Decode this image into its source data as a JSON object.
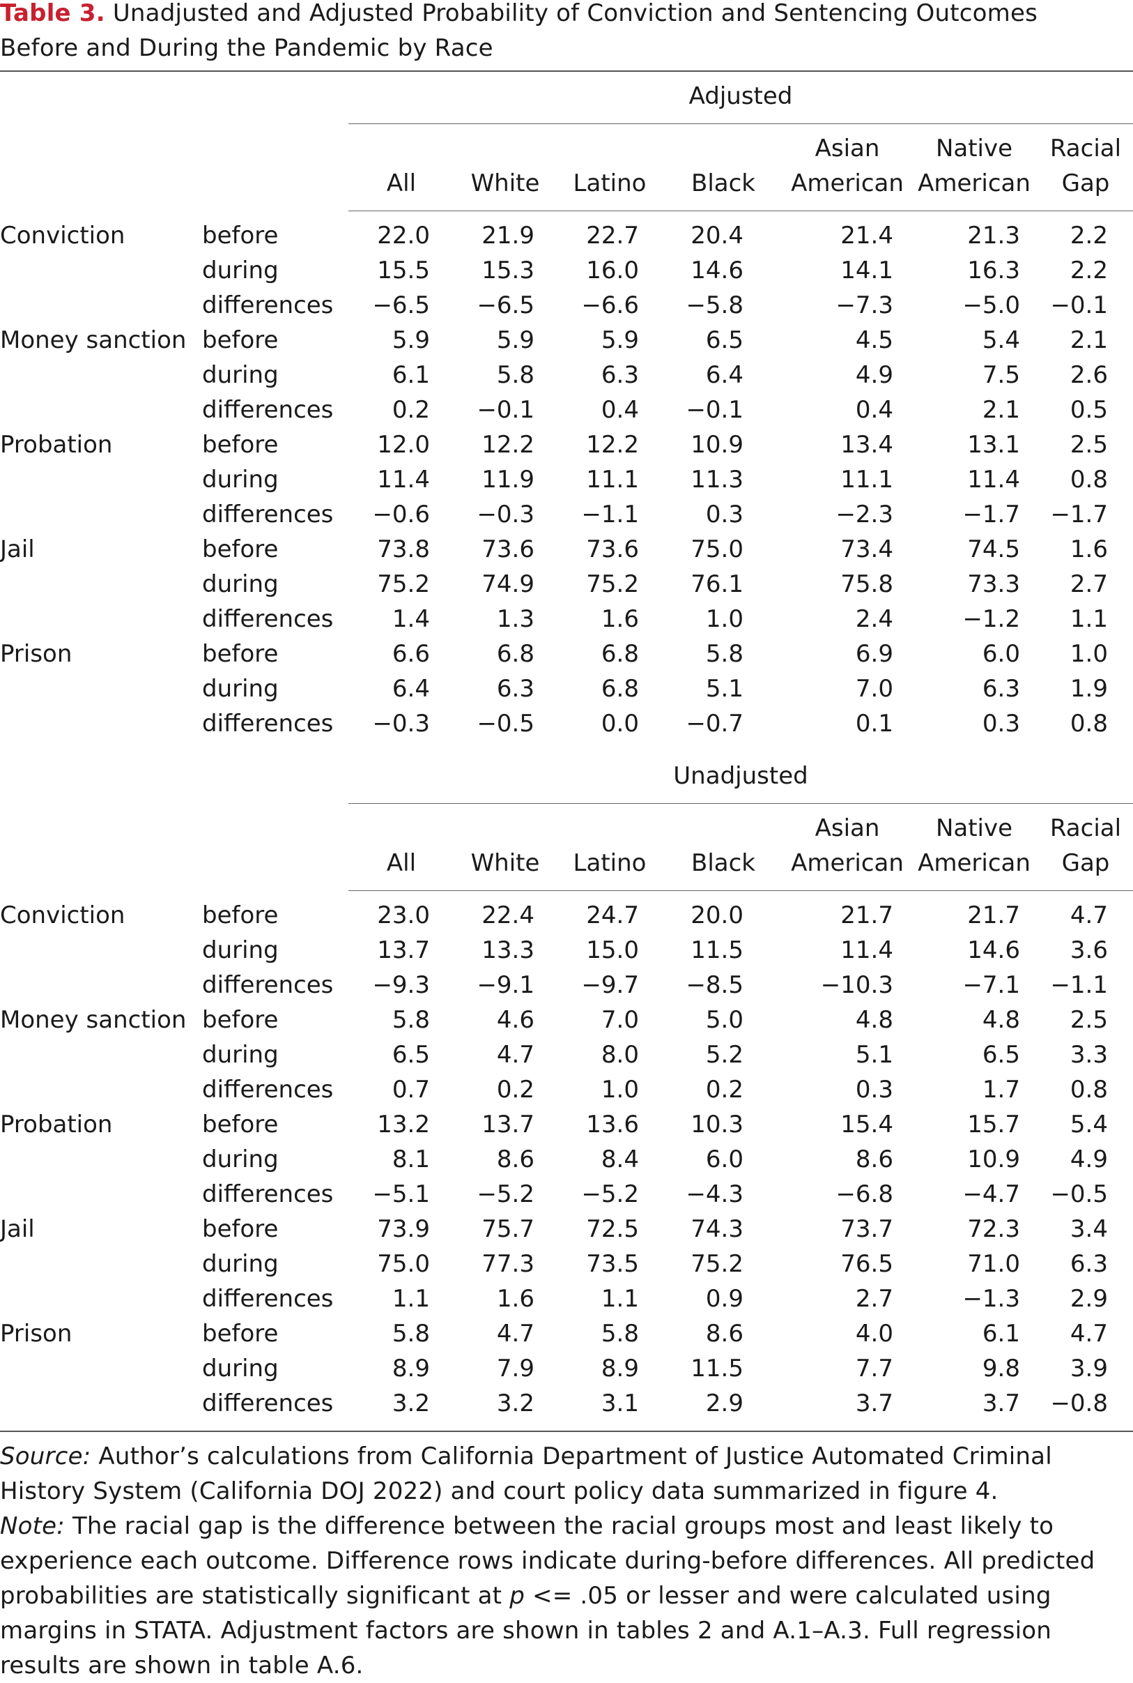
{
  "caption": {
    "label": "Table 3.",
    "text": "Unadjusted and Adjusted Probability of Conviction and Sentencing Outcomes Before and During the Pandemic by Race"
  },
  "columns": [
    {
      "line1": "",
      "line2": "All"
    },
    {
      "line1": "",
      "line2": "White"
    },
    {
      "line1": "",
      "line2": "Latino"
    },
    {
      "line1": "",
      "line2": "Black"
    },
    {
      "line1": "Asian",
      "line2": "American"
    },
    {
      "line1": "Native",
      "line2": "American"
    },
    {
      "line1": "Racial",
      "line2": "Gap"
    }
  ],
  "panels": [
    {
      "title": "Adjusted",
      "groups": [
        {
          "label": "Conviction",
          "rows": [
            {
              "period": "before",
              "values": [
                "22.0",
                "21.9",
                "22.7",
                "20.4",
                "21.4",
                "21.3",
                "2.2"
              ]
            },
            {
              "period": "during",
              "values": [
                "15.5",
                "15.3",
                "16.0",
                "14.6",
                "14.1",
                "16.3",
                "2.2"
              ]
            },
            {
              "period": "differences",
              "values": [
                "−6.5",
                "−6.5",
                "−6.6",
                "−5.8",
                "−7.3",
                "−5.0",
                "−0.1"
              ]
            }
          ]
        },
        {
          "label": "Money sanction",
          "rows": [
            {
              "period": "before",
              "values": [
                "5.9",
                "5.9",
                "5.9",
                "6.5",
                "4.5",
                "5.4",
                "2.1"
              ]
            },
            {
              "period": "during",
              "values": [
                "6.1",
                "5.8",
                "6.3",
                "6.4",
                "4.9",
                "7.5",
                "2.6"
              ]
            },
            {
              "period": "differences",
              "values": [
                "0.2",
                "−0.1",
                "0.4",
                "−0.1",
                "0.4",
                "2.1",
                "0.5"
              ]
            }
          ]
        },
        {
          "label": "Probation",
          "rows": [
            {
              "period": "before",
              "values": [
                "12.0",
                "12.2",
                "12.2",
                "10.9",
                "13.4",
                "13.1",
                "2.5"
              ]
            },
            {
              "period": "during",
              "values": [
                "11.4",
                "11.9",
                "11.1",
                "11.3",
                "11.1",
                "11.4",
                "0.8"
              ]
            },
            {
              "period": "differences",
              "values": [
                "−0.6",
                "−0.3",
                "−1.1",
                "0.3",
                "−2.3",
                "−1.7",
                "−1.7"
              ]
            }
          ]
        },
        {
          "label": "Jail",
          "rows": [
            {
              "period": "before",
              "values": [
                "73.8",
                "73.6",
                "73.6",
                "75.0",
                "73.4",
                "74.5",
                "1.6"
              ]
            },
            {
              "period": "during",
              "values": [
                "75.2",
                "74.9",
                "75.2",
                "76.1",
                "75.8",
                "73.3",
                "2.7"
              ]
            },
            {
              "period": "differences",
              "values": [
                "1.4",
                "1.3",
                "1.6",
                "1.0",
                "2.4",
                "−1.2",
                "1.1"
              ]
            }
          ]
        },
        {
          "label": "Prison",
          "rows": [
            {
              "period": "before",
              "values": [
                "6.6",
                "6.8",
                "6.8",
                "5.8",
                "6.9",
                "6.0",
                "1.0"
              ]
            },
            {
              "period": "during",
              "values": [
                "6.4",
                "6.3",
                "6.8",
                "5.1",
                "7.0",
                "6.3",
                "1.9"
              ]
            },
            {
              "period": "differences",
              "values": [
                "−0.3",
                "−0.5",
                "0.0",
                "−0.7",
                "0.1",
                "0.3",
                "0.8"
              ]
            }
          ]
        }
      ]
    },
    {
      "title": "Unadjusted",
      "groups": [
        {
          "label": "Conviction",
          "rows": [
            {
              "period": "before",
              "values": [
                "23.0",
                "22.4",
                "24.7",
                "20.0",
                "21.7",
                "21.7",
                "4.7"
              ]
            },
            {
              "period": "during",
              "values": [
                "13.7",
                "13.3",
                "15.0",
                "11.5",
                "11.4",
                "14.6",
                "3.6"
              ]
            },
            {
              "period": "differences",
              "values": [
                "−9.3",
                "−9.1",
                "−9.7",
                "−8.5",
                "−10.3",
                "−7.1",
                "−1.1"
              ]
            }
          ]
        },
        {
          "label": "Money sanction",
          "rows": [
            {
              "period": "before",
              "values": [
                "5.8",
                "4.6",
                "7.0",
                "5.0",
                "4.8",
                "4.8",
                "2.5"
              ]
            },
            {
              "period": "during",
              "values": [
                "6.5",
                "4.7",
                "8.0",
                "5.2",
                "5.1",
                "6.5",
                "3.3"
              ]
            },
            {
              "period": "differences",
              "values": [
                "0.7",
                "0.2",
                "1.0",
                "0.2",
                "0.3",
                "1.7",
                "0.8"
              ]
            }
          ]
        },
        {
          "label": "Probation",
          "rows": [
            {
              "period": "before",
              "values": [
                "13.2",
                "13.7",
                "13.6",
                "10.3",
                "15.4",
                "15.7",
                "5.4"
              ]
            },
            {
              "period": "during",
              "values": [
                "8.1",
                "8.6",
                "8.4",
                "6.0",
                "8.6",
                "10.9",
                "4.9"
              ]
            },
            {
              "period": "differences",
              "values": [
                "−5.1",
                "−5.2",
                "−5.2",
                "−4.3",
                "−6.8",
                "−4.7",
                "−0.5"
              ]
            }
          ]
        },
        {
          "label": "Jail",
          "rows": [
            {
              "period": "before",
              "values": [
                "73.9",
                "75.7",
                "72.5",
                "74.3",
                "73.7",
                "72.3",
                "3.4"
              ]
            },
            {
              "period": "during",
              "values": [
                "75.0",
                "77.3",
                "73.5",
                "75.2",
                "76.5",
                "71.0",
                "6.3"
              ]
            },
            {
              "period": "differences",
              "values": [
                "1.1",
                "1.6",
                "1.1",
                "0.9",
                "2.7",
                "−1.3",
                "2.9"
              ]
            }
          ]
        },
        {
          "label": "Prison",
          "rows": [
            {
              "period": "before",
              "values": [
                "5.8",
                "4.7",
                "5.8",
                "8.6",
                "4.0",
                "6.1",
                "4.7"
              ]
            },
            {
              "period": "during",
              "values": [
                "8.9",
                "7.9",
                "8.9",
                "11.5",
                "7.7",
                "9.8",
                "3.9"
              ]
            },
            {
              "period": "differences",
              "values": [
                "3.2",
                "3.2",
                "3.1",
                "2.9",
                "3.7",
                "3.7",
                "−0.8"
              ]
            }
          ]
        }
      ]
    }
  ],
  "footer": {
    "source_label": "Source:",
    "source_text": "Author’s calculations from California Department of Justice Automated Criminal History System (California DOJ 2022) and court policy data summarized in figure 4.",
    "note_label": "Note:",
    "note_text_1": "The racial gap is the difference between the racial groups most and least likely to experience each outcome. Difference rows indicate during-before differences. All predicted probabilities are statistically significant at",
    "note_p": "p",
    "note_text_2": "<= .05 or lesser and were calculated using margins in STATA. Adjustment factors are shown in tables 2 and A.1–A.3. Full regression results are shown in table A.6."
  }
}
